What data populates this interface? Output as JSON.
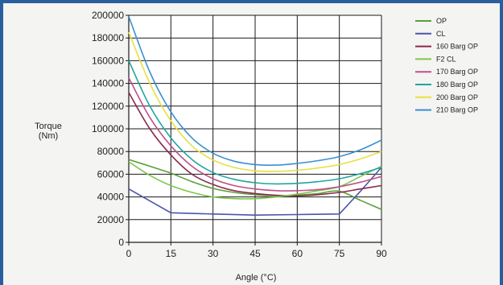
{
  "chart_data": {
    "type": "line",
    "title": "",
    "xlabel": "Angle (°C)",
    "ylabel_line1": "Torque",
    "ylabel_line2": "(Nm)",
    "xlim": [
      0,
      90
    ],
    "ylim": [
      0,
      200000
    ],
    "xticks": [
      0,
      15,
      30,
      45,
      60,
      75,
      90
    ],
    "yticks": [
      0,
      20000,
      40000,
      60000,
      80000,
      100000,
      120000,
      140000,
      160000,
      180000,
      200000
    ],
    "xtick_labels": [
      "0",
      "15",
      "30",
      "45",
      "60",
      "75",
      "90"
    ],
    "ytick_labels": [
      "0",
      "20000",
      "40000",
      "60000",
      "80000",
      "100000",
      "120000",
      "140000",
      "160000",
      "180000",
      "200000"
    ],
    "grid": true,
    "legend_position": "right",
    "series": [
      {
        "name": "OP",
        "color": "#5aa03a",
        "x": [
          0,
          10,
          15,
          22.5,
          30,
          37.5,
          45,
          52.5,
          60,
          67.5,
          75,
          82.5,
          90
        ],
        "y": [
          73000,
          65000,
          61000,
          53500,
          47500,
          44000,
          42000,
          41000,
          41500,
          43000,
          45000,
          37000,
          29000
        ]
      },
      {
        "name": "CL",
        "color": "#4a56a8",
        "x": [
          0,
          15,
          30,
          45,
          60,
          75,
          82.5,
          90
        ],
        "y": [
          47000,
          26000,
          25000,
          24000,
          24500,
          25000,
          45000,
          66000
        ]
      },
      {
        "name": "160 Barg OP",
        "color": "#8a2a4a",
        "x": [
          0,
          7.5,
          15,
          22.5,
          30,
          37.5,
          45,
          52.5,
          60,
          67.5,
          75,
          82.5,
          90
        ],
        "y": [
          132000,
          100000,
          77000,
          60000,
          51000,
          45500,
          43000,
          41500,
          41000,
          42000,
          44000,
          47000,
          50000
        ]
      },
      {
        "name": "F2 CL",
        "color": "#7cc84a",
        "x": [
          0,
          7.5,
          15,
          22.5,
          30,
          37.5,
          45,
          52.5,
          60,
          67.5,
          75,
          82.5,
          90
        ],
        "y": [
          71000,
          59000,
          50000,
          44000,
          40000,
          38500,
          38500,
          40000,
          42500,
          45500,
          49000,
          58000,
          67000
        ]
      },
      {
        "name": "170 Barg OP",
        "color": "#c0508a",
        "x": [
          0,
          7.5,
          15,
          22.5,
          30,
          37.5,
          45,
          52.5,
          60,
          67.5,
          75,
          82.5,
          90
        ],
        "y": [
          145000,
          110000,
          85000,
          67000,
          56000,
          50000,
          47000,
          45500,
          45500,
          46500,
          49000,
          53000,
          58000
        ]
      },
      {
        "name": "180 Barg OP",
        "color": "#1fa6a0",
        "x": [
          0,
          7.5,
          15,
          22.5,
          30,
          37.5,
          45,
          52.5,
          60,
          67.5,
          75,
          82.5,
          90
        ],
        "y": [
          160000,
          120000,
          92000,
          73000,
          61500,
          55500,
          52500,
          51500,
          52000,
          53500,
          56000,
          60500,
          66000
        ]
      },
      {
        "name": "200 Barg OP",
        "color": "#e8e040",
        "x": [
          0,
          7.5,
          15,
          22.5,
          30,
          37.5,
          45,
          52.5,
          60,
          67.5,
          75,
          82.5,
          90
        ],
        "y": [
          185000,
          140000,
          107000,
          85000,
          72500,
          66000,
          63000,
          62500,
          63500,
          65500,
          68500,
          73500,
          80000
        ]
      },
      {
        "name": "210 Barg OP",
        "color": "#3a90d0",
        "x": [
          0,
          7.5,
          15,
          22.5,
          30,
          37.5,
          45,
          52.5,
          60,
          67.5,
          75,
          82.5,
          90
        ],
        "y": [
          199000,
          150000,
          115000,
          92000,
          78500,
          71500,
          68500,
          68000,
          69500,
          72000,
          75500,
          81500,
          90000
        ]
      }
    ]
  }
}
